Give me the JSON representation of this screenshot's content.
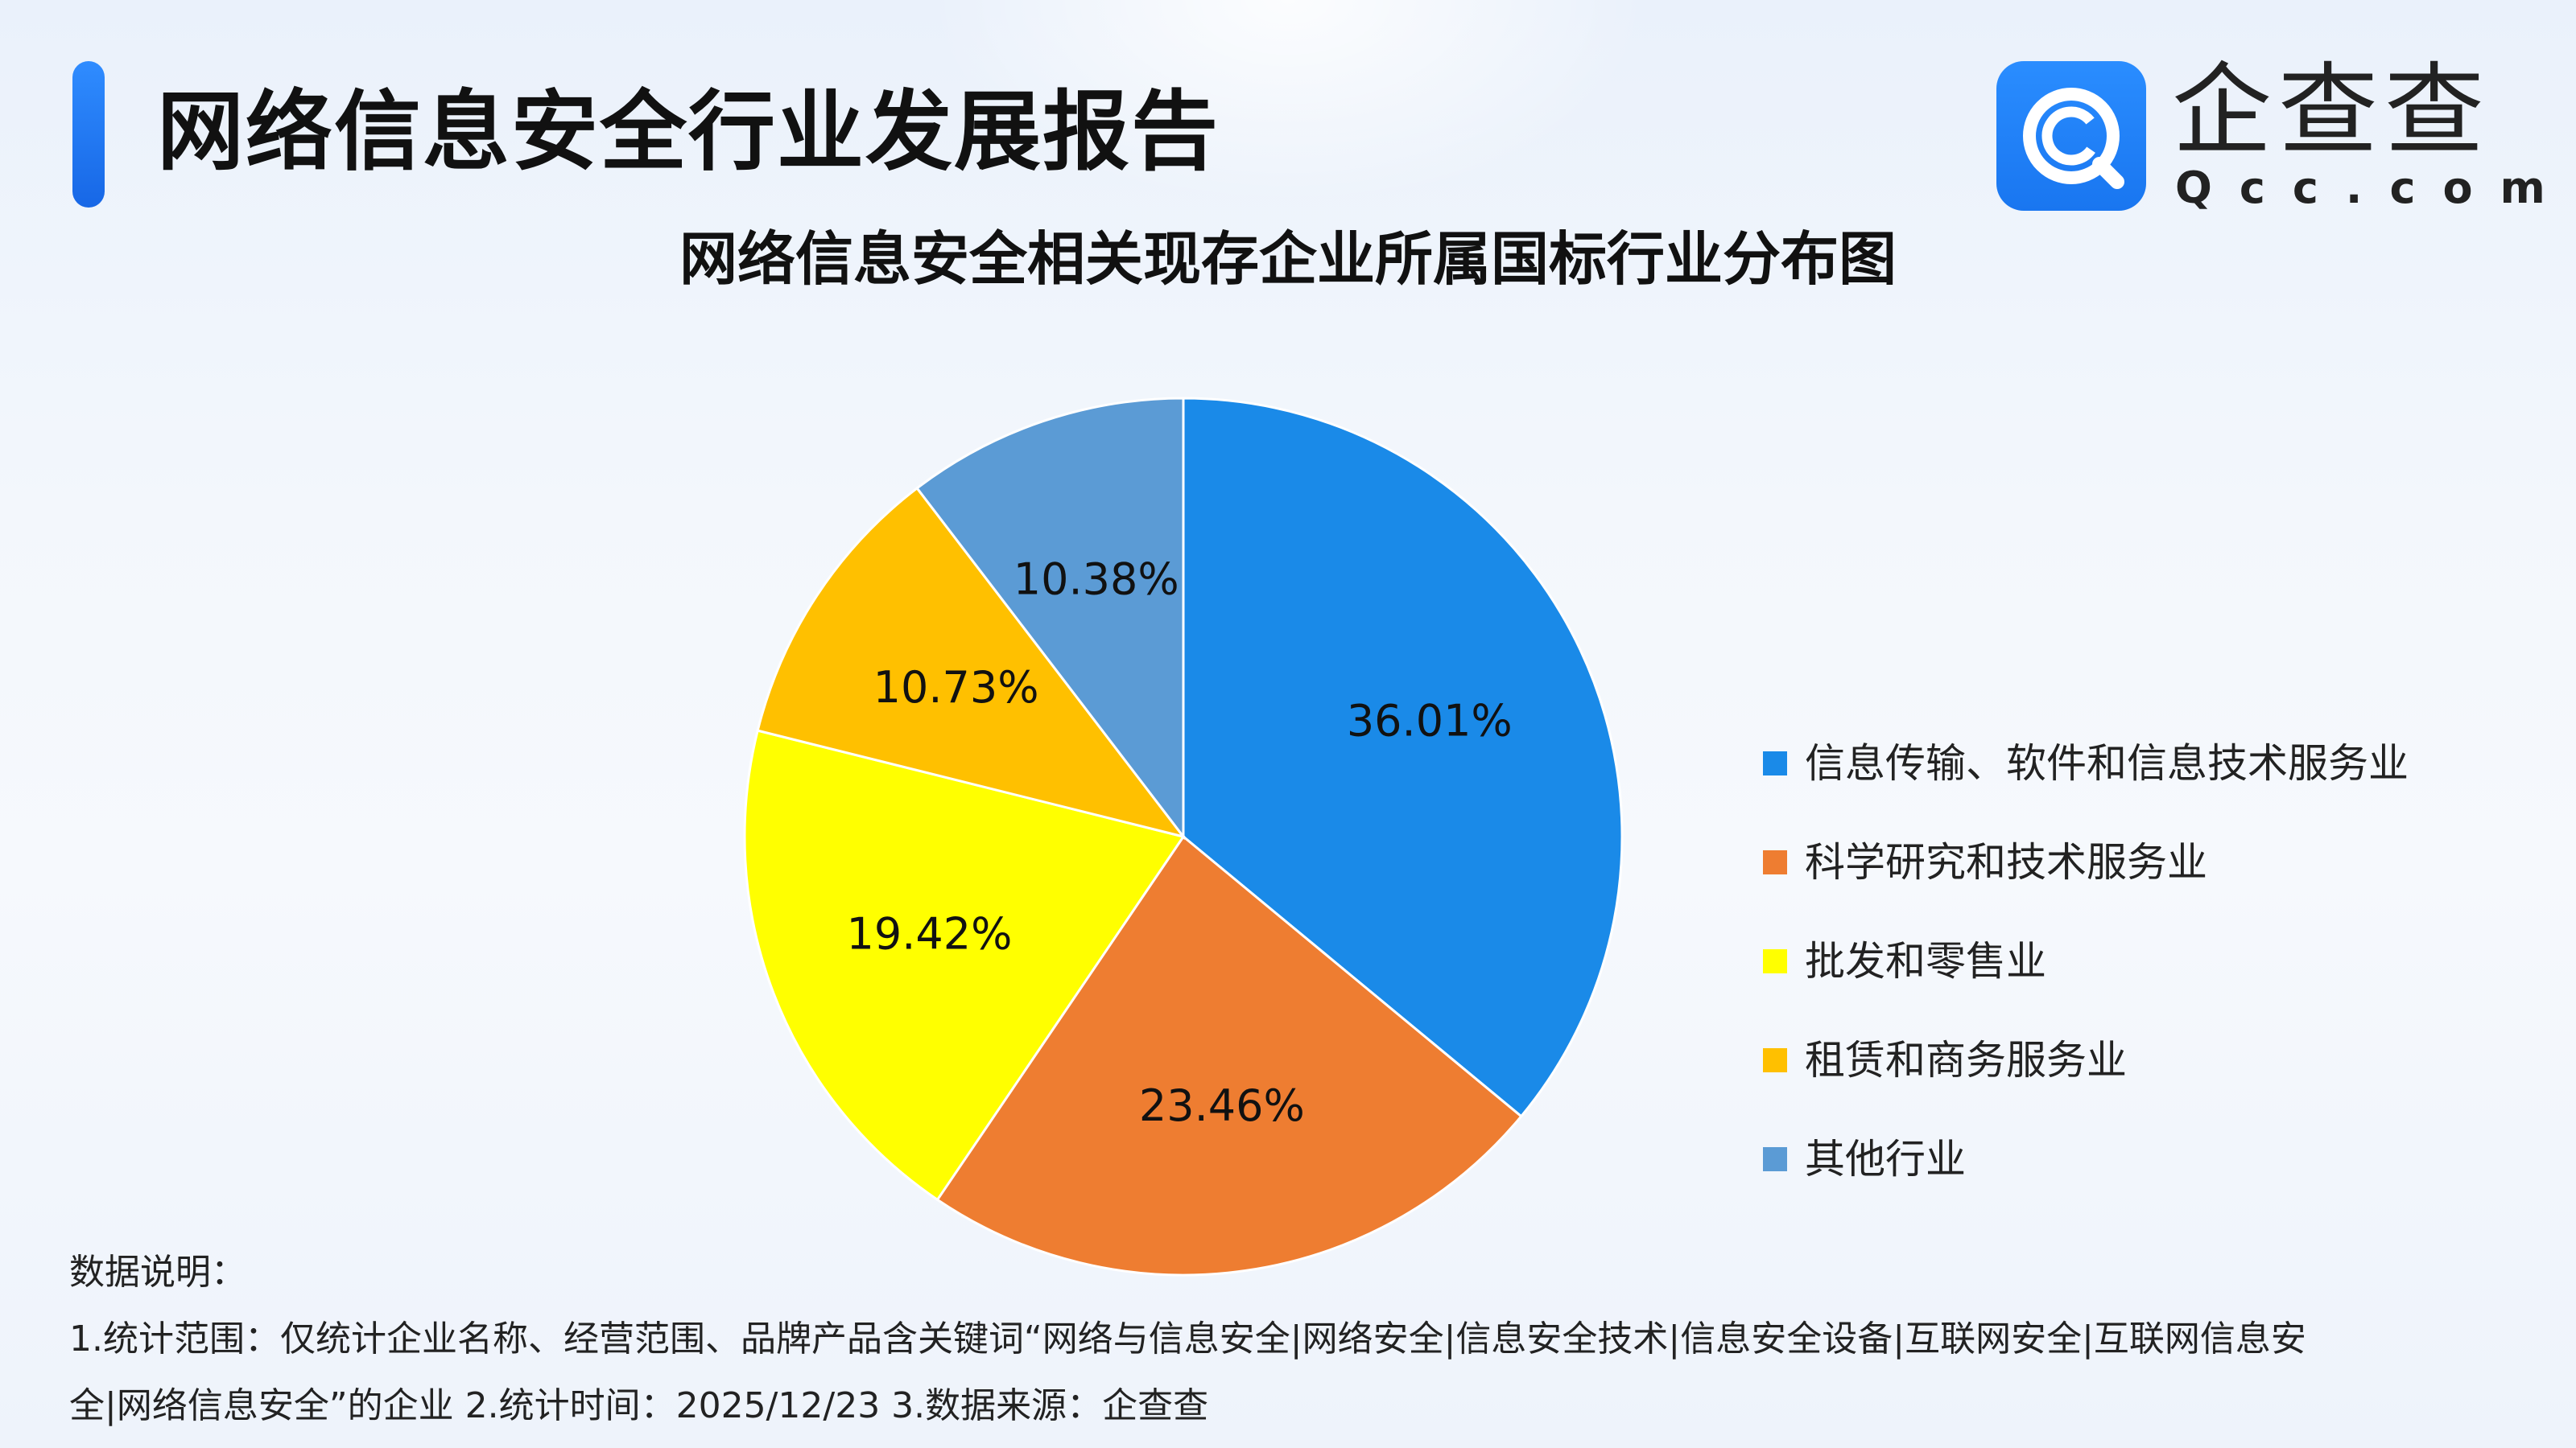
{
  "header": {
    "title": "网络信息安全行业发展报告",
    "logo_name": "企查查",
    "logo_domain": "Qcc.com",
    "logo_icon": "qcc-magnifier-icon"
  },
  "colors": {
    "accent": "#1f7ff0",
    "logo_blue": "#1976f0"
  },
  "chart_data": {
    "type": "pie",
    "title": "网络信息安全相关现存企业所属国标行业分布图",
    "legend_position": "right",
    "slices": [
      {
        "name": "信息传输、软件和信息技术服务业",
        "value": 36.01,
        "label": "36.01%",
        "color": "#1a8ae8"
      },
      {
        "name": "科学研究和技术服务业",
        "value": 23.46,
        "label": "23.46%",
        "color": "#ee7d31"
      },
      {
        "name": "批发和零售业",
        "value": 19.42,
        "label": "19.42%",
        "color": "#ffff00"
      },
      {
        "name": "租赁和商务服务业",
        "value": 10.73,
        "label": "10.73%",
        "color": "#ffc000"
      },
      {
        "name": "其他行业",
        "value": 10.38,
        "label": "10.38%",
        "color": "#5b9bd5"
      }
    ]
  },
  "notes": {
    "heading": "数据说明：",
    "line1": "1.统计范围：仅统计企业名称、经营范围、品牌产品含关键词“网络与信息安全|网络安全|信息安全技术|信息安全设备|互联网安全|互联网信息安",
    "line2": "全|网络信息安全”的企业 2.统计时间：2025/12/23  3.数据来源：企查查"
  }
}
